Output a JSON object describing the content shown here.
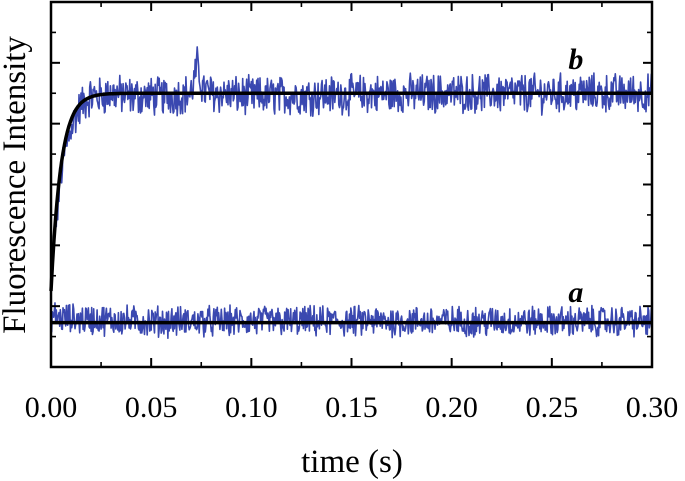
{
  "chart_data": {
    "type": "line",
    "title": "",
    "xlabel": "time (s)",
    "ylabel": "Fluorescence Intensity",
    "xlim": [
      0.0,
      0.3
    ],
    "ylim": [
      0,
      6
    ],
    "x_ticks": [
      "0.00",
      "0.05",
      "0.10",
      "0.15",
      "0.20",
      "0.25",
      "0.30"
    ],
    "y_tick_labels_shown": false,
    "grid": false,
    "legend": "none",
    "colors": {
      "data": "#3a48b0",
      "fit": "#000000",
      "frame": "#000000"
    },
    "series": [
      {
        "name": "b",
        "kind": "noisy-data",
        "x": [
          0.0,
          0.002,
          0.005,
          0.01,
          0.015,
          0.02,
          0.025,
          0.03,
          0.04,
          0.05,
          0.06,
          0.07,
          0.073,
          0.076,
          0.08,
          0.1,
          0.15,
          0.2,
          0.25,
          0.3
        ],
        "y": [
          1.25,
          2.2,
          3.2,
          3.95,
          4.3,
          4.45,
          4.45,
          4.5,
          4.45,
          4.45,
          4.45,
          4.5,
          4.95,
          4.55,
          4.5,
          4.45,
          4.48,
          4.5,
          4.5,
          4.5
        ],
        "noise": 0.28
      },
      {
        "name": "b fit",
        "kind": "fit",
        "model": "single-exponential rise",
        "y0": 1.25,
        "plateau": 4.5,
        "tau": 0.005
      },
      {
        "name": "a",
        "kind": "noisy-data",
        "x": [
          0.0,
          0.005,
          0.02,
          0.05,
          0.1,
          0.15,
          0.2,
          0.25,
          0.3
        ],
        "y": [
          0.85,
          0.8,
          0.78,
          0.75,
          0.75,
          0.75,
          0.75,
          0.75,
          0.75
        ],
        "noise": 0.22
      },
      {
        "name": "a fit",
        "kind": "fit",
        "model": "flat",
        "y0": 0.73,
        "plateau": 0.73,
        "tau": 1
      }
    ],
    "annotations": [
      {
        "text": "b",
        "x": 0.262,
        "y": 4.9
      },
      {
        "text": "a",
        "x": 0.262,
        "y": 1.07
      }
    ]
  }
}
